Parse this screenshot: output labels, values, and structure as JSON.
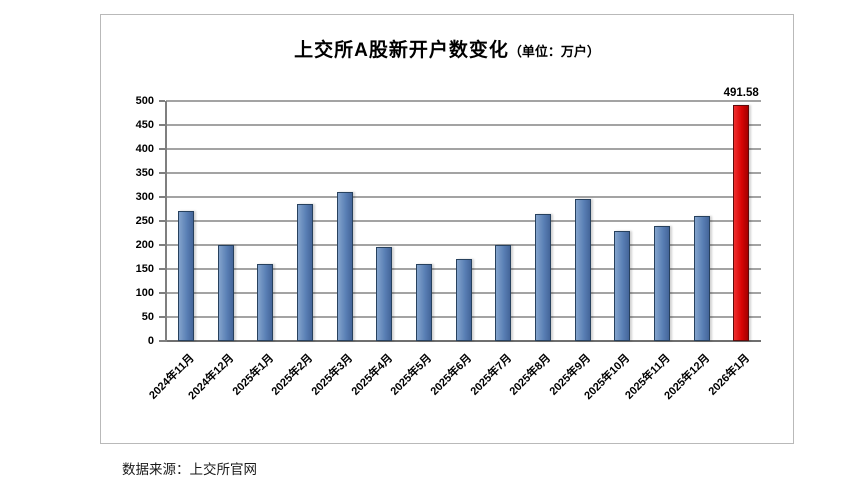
{
  "chart": {
    "title": "上交所A股新开户数变化",
    "title_unit": "（单位：万户）",
    "source": "数据来源：上交所官网",
    "highlight_value_label": "491.58"
  },
  "chart_data": {
    "type": "bar",
    "title": "上交所A股新开户数变化（单位：万户）",
    "xlabel": "",
    "ylabel": "",
    "categories": [
      "2024年11月",
      "2024年12月",
      "2025年1月",
      "2025年2月",
      "2025年3月",
      "2025年4月",
      "2025年5月",
      "2025年6月",
      "2025年7月",
      "2025年8月",
      "2025年9月",
      "2025年10月",
      "2025年11月",
      "2025年12月",
      "2026年1月"
    ],
    "values": [
      270,
      200,
      160,
      285,
      310,
      195,
      160,
      170,
      200,
      265,
      295,
      230,
      240,
      260,
      491.58
    ],
    "ylim": [
      0,
      500
    ],
    "yticks": [
      0,
      50,
      100,
      150,
      200,
      250,
      300,
      350,
      400,
      450,
      500
    ],
    "grid": true,
    "legend": false,
    "bar_color": "#5a80b5",
    "highlight_index": 14,
    "highlight_color": "#d80404",
    "data_label": {
      "index": 14,
      "text": "491.58"
    }
  }
}
